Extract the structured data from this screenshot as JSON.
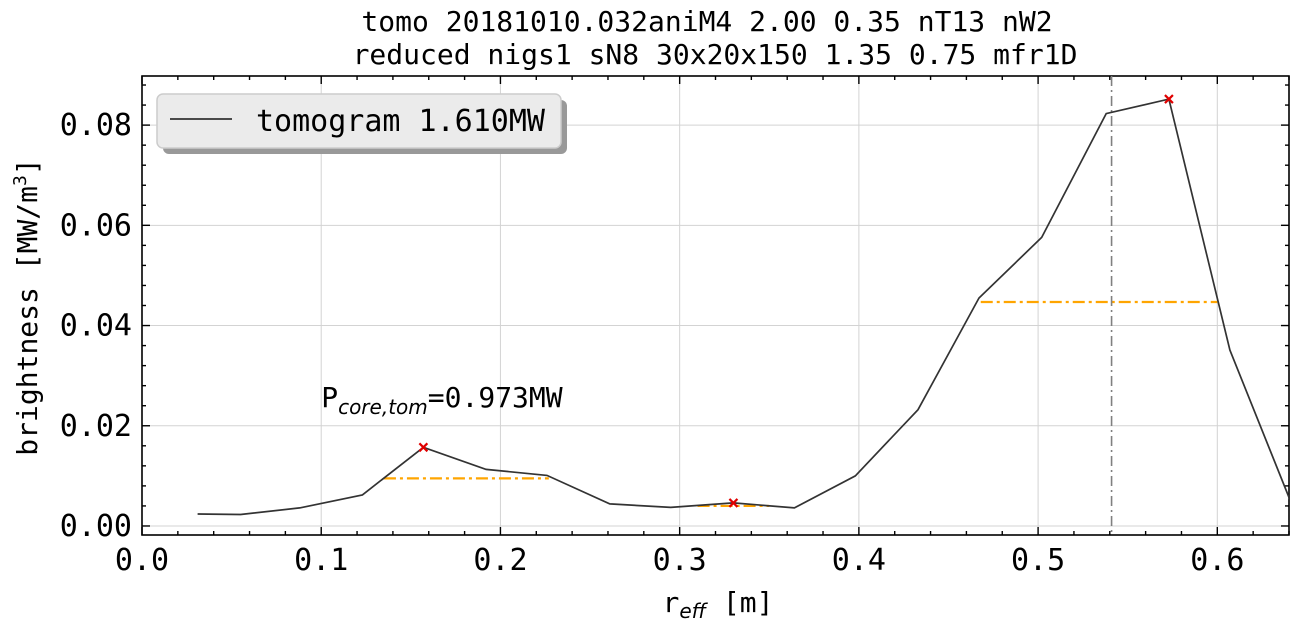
{
  "chart_data": {
    "type": "line",
    "title": [
      "tomo 20181010.032aniM4 2.00 0.35 nT13 nW2",
      "reduced nigs1 sN8 30x20x150 1.35 0.75 mfr1D"
    ],
    "xlabel": {
      "base": "r",
      "sub": "eff",
      "tail": " [m]"
    },
    "ylabel": {
      "text": "brightness [MW/m",
      "sup": "3",
      "close": "]"
    },
    "xlim": [
      0.0,
      0.64
    ],
    "ylim": [
      -0.0018,
      0.0898
    ],
    "xticks": [
      0.0,
      0.1,
      0.2,
      0.3,
      0.4,
      0.5,
      0.6
    ],
    "xtick_labels": [
      "0.0",
      "0.1",
      "0.2",
      "0.3",
      "0.4",
      "0.5",
      "0.6"
    ],
    "xminor_step": 0.02,
    "yticks": [
      0.0,
      0.02,
      0.04,
      0.06,
      0.08
    ],
    "ytick_labels": [
      "0.00",
      "0.02",
      "0.04",
      "0.06",
      "0.08"
    ],
    "yminor_step": 0.004,
    "grid": true,
    "legend": {
      "placement": "upper-left",
      "label": "tomogram 1.610MW"
    },
    "annotation": {
      "base": "P",
      "sub": "core,tom",
      "tail": "=0.973MW",
      "x": 0.1,
      "y": 0.0255
    },
    "series": [
      {
        "name": "tomogram 1.610MW",
        "color": "#333333",
        "x": [
          0.031,
          0.055,
          0.088,
          0.123,
          0.157,
          0.192,
          0.226,
          0.261,
          0.295,
          0.33,
          0.364,
          0.398,
          0.433,
          0.467,
          0.502,
          0.538,
          0.573,
          0.607,
          0.641
        ],
        "y": [
          0.0024,
          0.0023,
          0.0036,
          0.0062,
          0.0157,
          0.0113,
          0.0101,
          0.0044,
          0.0037,
          0.0046,
          0.0036,
          0.01,
          0.0232,
          0.0455,
          0.0576,
          0.0823,
          0.0852,
          0.0351,
          0.0048
        ]
      }
    ],
    "peaks": {
      "color": "#e00000",
      "x": [
        0.157,
        0.33,
        0.573
      ],
      "y": [
        0.0157,
        0.0046,
        0.0852
      ]
    },
    "fwhm_lines": {
      "color": "#ffa500",
      "segments": [
        {
          "x0": 0.135,
          "x1": 0.227,
          "y": 0.0095
        },
        {
          "x0": 0.31,
          "x1": 0.35,
          "y": 0.004
        },
        {
          "x0": 0.468,
          "x1": 0.6,
          "y": 0.0447
        }
      ]
    },
    "vline": {
      "x": 0.541,
      "color": "#808080"
    }
  }
}
